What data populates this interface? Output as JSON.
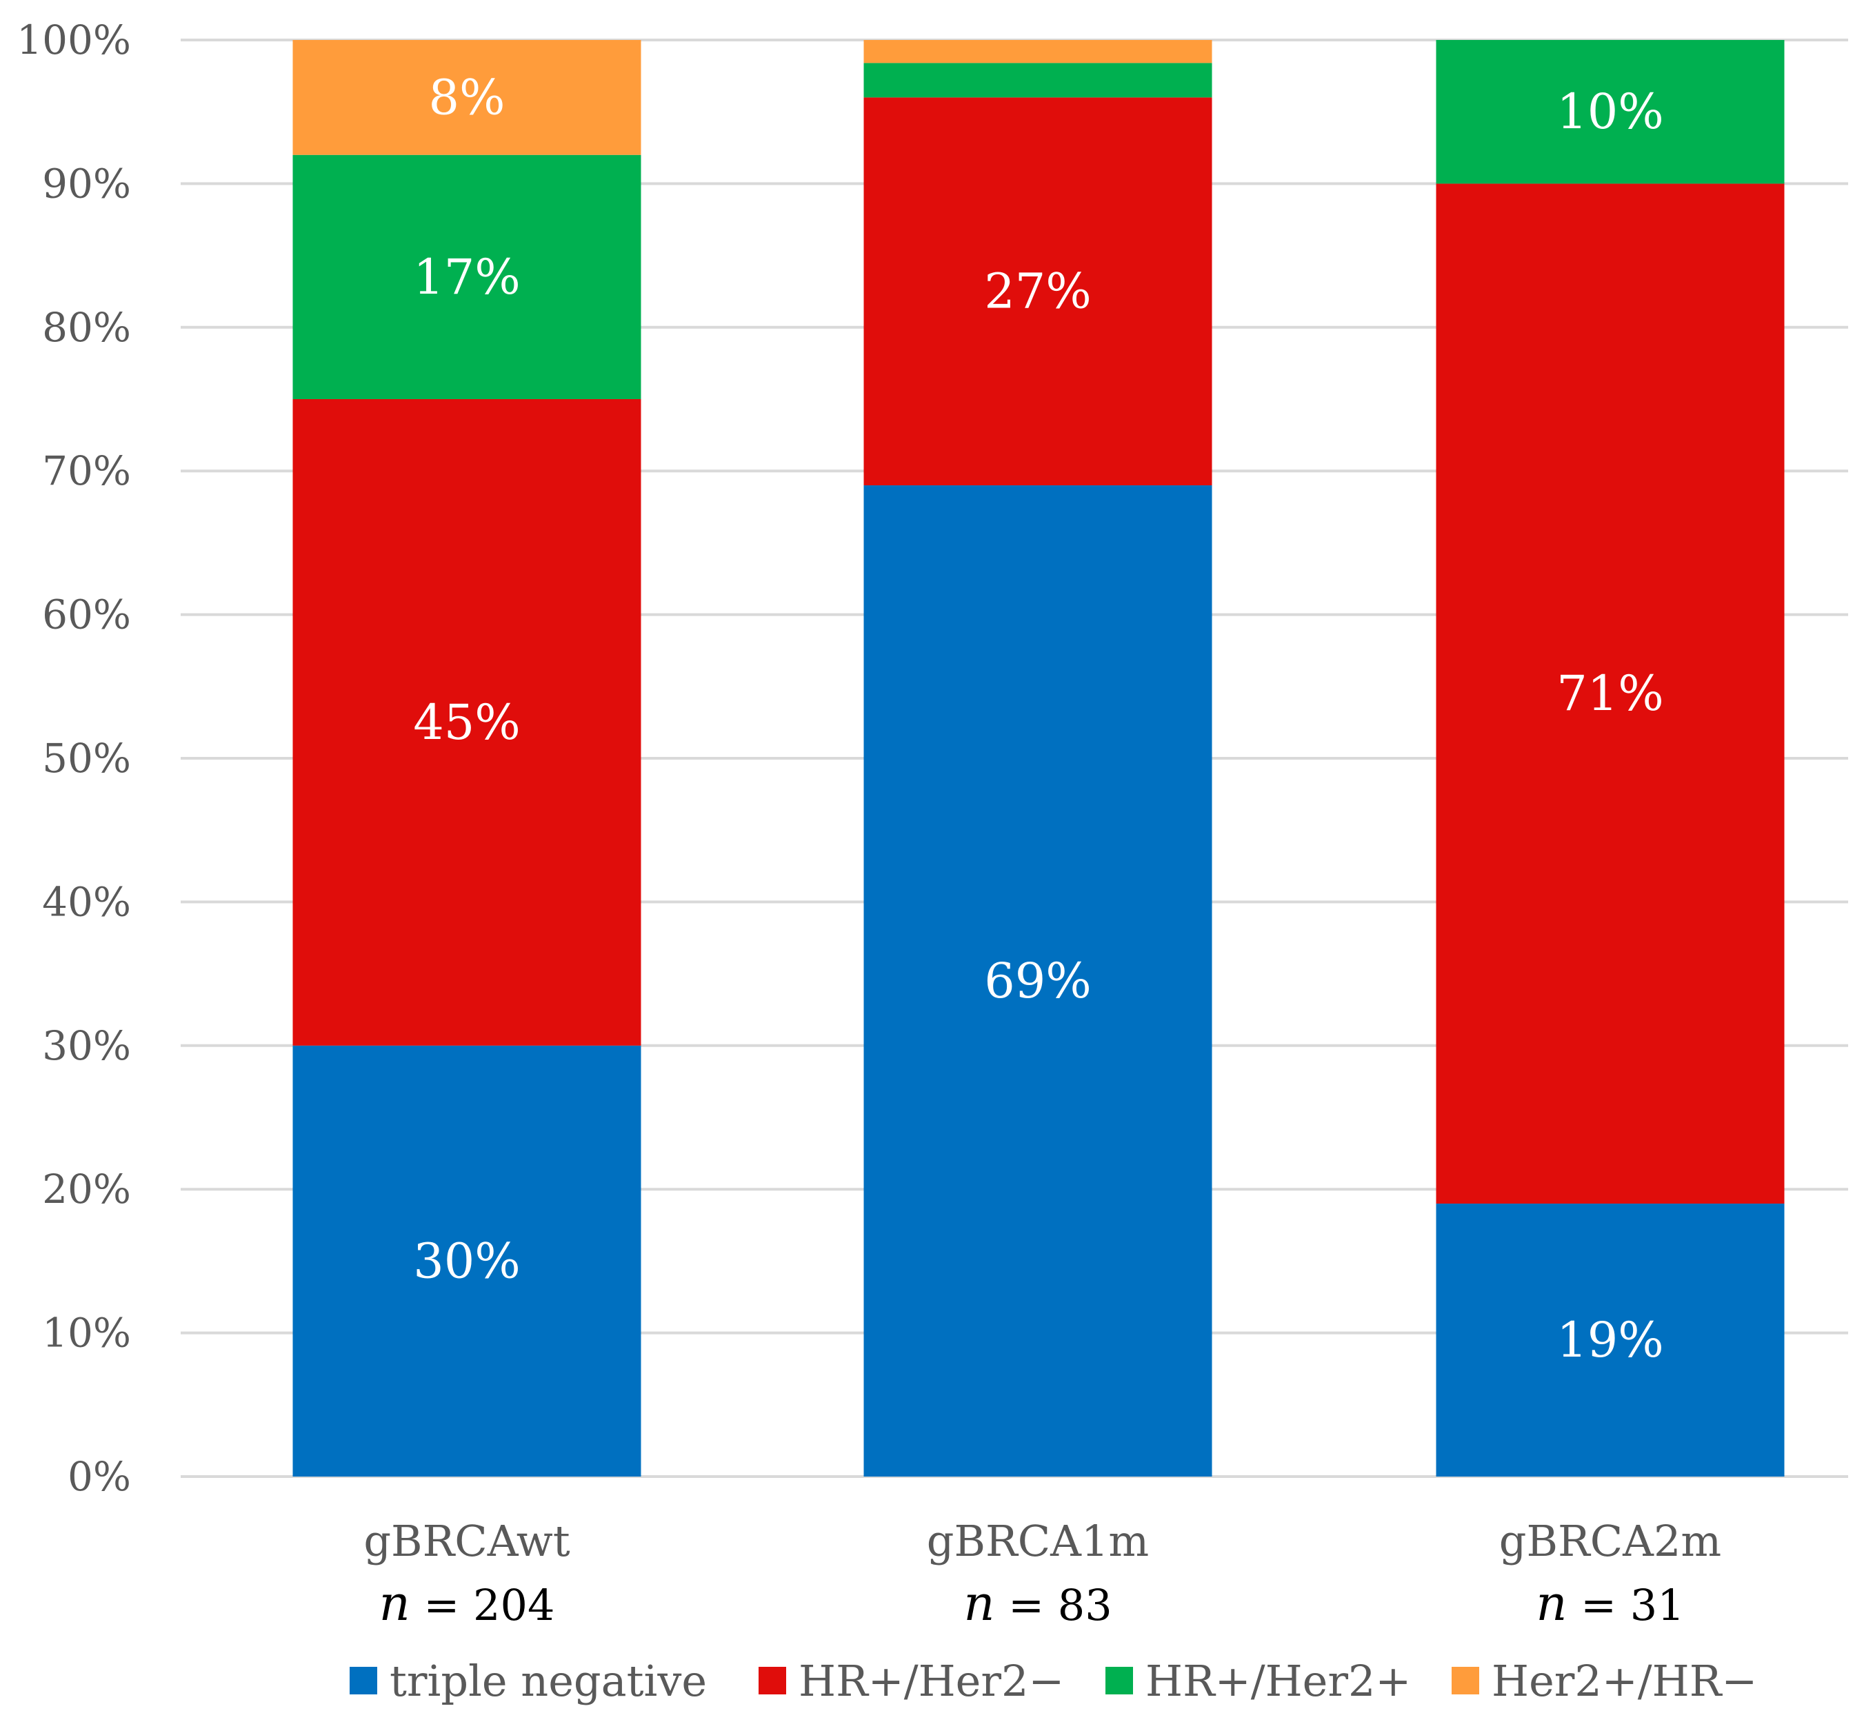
{
  "chart_data": {
    "type": "bar",
    "stacked": true,
    "title": "",
    "xlabel": "",
    "ylabel": "",
    "ylim": [
      0,
      100
    ],
    "y_ticks": [
      "0%",
      "10%",
      "20%",
      "30%",
      "40%",
      "50%",
      "60%",
      "70%",
      "80%",
      "90%",
      "100%"
    ],
    "categories": [
      "gBRCAwt",
      "gBRCA1m",
      "gBRCA2m"
    ],
    "n_prefix": "n",
    "n_values": [
      "= 204",
      "= 83",
      "= 31"
    ],
    "series": [
      {
        "name": "triple negative",
        "color": "#0070c0",
        "values": [
          30,
          69,
          19
        ],
        "labels": [
          "30%",
          "69%",
          "19%"
        ]
      },
      {
        "name": "HR+/Her2−",
        "color": "#e00d0b",
        "values": [
          45,
          27,
          71
        ],
        "labels": [
          "45%",
          "27%",
          "71%"
        ]
      },
      {
        "name": "HR+/Her2+",
        "color": "#00b050",
        "values": [
          17,
          2.4,
          10
        ],
        "labels": [
          "17%",
          "",
          "10%"
        ]
      },
      {
        "name": "Her2+/HR−",
        "color": "#ff9c3b",
        "values": [
          8,
          2.4,
          0
        ],
        "labels": [
          "8%",
          "",
          ""
        ]
      }
    ],
    "legend_position": "bottom",
    "grid": true
  }
}
